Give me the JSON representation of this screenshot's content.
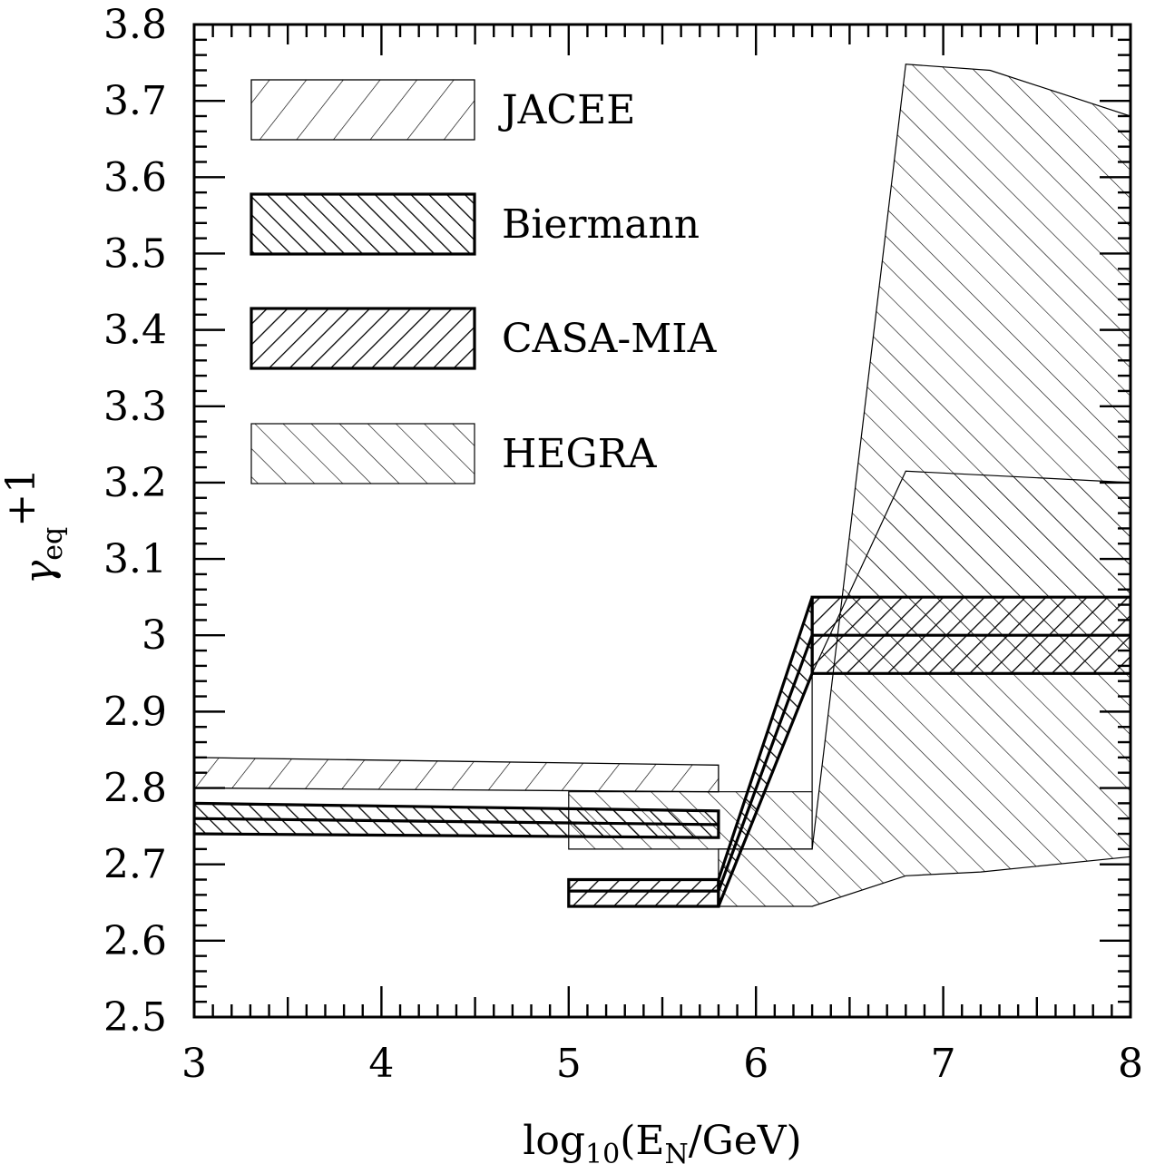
{
  "chart_data": {
    "type": "area",
    "title": "",
    "xlabel": {
      "base": "log",
      "sub": "10",
      "mid": "(E",
      "sub2": "N",
      "end": "/GeV)"
    },
    "ylabel": {
      "base": "γ",
      "sub": "eq",
      "sup": "+1"
    },
    "xlim": [
      3,
      8
    ],
    "ylim": [
      2.5,
      3.8
    ],
    "x_ticks": [
      "3",
      "4",
      "5",
      "6",
      "7",
      "8"
    ],
    "y_ticks": [
      "2.5",
      "2.6",
      "2.7",
      "2.8",
      "2.9",
      "3",
      "3.1",
      "3.2",
      "3.3",
      "3.4",
      "3.5",
      "3.6",
      "3.7",
      "3.8"
    ],
    "legend_position": "top-left",
    "series": [
      {
        "name": "JACEE",
        "style": "thin-backslash-hatch",
        "bands": [
          {
            "upper": [
              [
                3.0,
                2.84
              ],
              [
                5.8,
                2.83
              ]
            ],
            "lower": [
              [
                3.0,
                2.8
              ],
              [
                5.8,
                2.795
              ]
            ]
          }
        ]
      },
      {
        "name": "Biermann",
        "style": "thick-slash-hatch",
        "bands": [
          {
            "upper": [
              [
                3.0,
                2.78
              ],
              [
                5.8,
                2.77
              ]
            ],
            "lower": [
              [
                3.0,
                2.74
              ],
              [
                5.8,
                2.735
              ]
            ],
            "center": [
              [
                3.0,
                2.76
              ],
              [
                5.8,
                2.752
              ]
            ]
          },
          {
            "upper": [
              [
                5.8,
                2.68
              ],
              [
                6.3,
                3.05
              ]
            ],
            "lower": [
              [
                5.8,
                2.645
              ],
              [
                6.3,
                2.95
              ]
            ],
            "center": [
              [
                5.8,
                2.665
              ],
              [
                6.3,
                3.0
              ]
            ]
          }
        ]
      },
      {
        "name": "CASA-MIA",
        "style": "thick-backslash-hatch",
        "bands": [
          {
            "upper": [
              [
                5.0,
                2.68
              ],
              [
                5.8,
                2.68
              ]
            ],
            "lower": [
              [
                5.0,
                2.645
              ],
              [
                5.8,
                2.645
              ]
            ],
            "center": [
              [
                5.0,
                2.665
              ],
              [
                5.8,
                2.665
              ]
            ]
          },
          {
            "upper": [
              [
                6.3,
                3.05
              ],
              [
                8.0,
                3.05
              ]
            ],
            "lower": [
              [
                6.3,
                2.95
              ],
              [
                8.0,
                2.95
              ]
            ],
            "center": [
              [
                6.3,
                3.0
              ],
              [
                8.0,
                3.0
              ]
            ]
          }
        ]
      },
      {
        "name": "HEGRA",
        "style": "thin-slash-hatch",
        "bands": [
          {
            "outline": [
              [
                5.0,
                2.795
              ],
              [
                6.3,
                2.795
              ],
              [
                6.3,
                2.95
              ],
              [
                6.8,
                3.215
              ],
              [
                8.0,
                3.2
              ],
              [
                8.0,
                2.95
              ],
              [
                6.3,
                2.95
              ],
              [
                6.3,
                2.72
              ],
              [
                5.0,
                2.72
              ]
            ]
          },
          {
            "upper": [
              [
                5.8,
                2.72
              ],
              [
                6.3,
                2.72
              ],
              [
                6.8,
                3.748
              ],
              [
                7.25,
                3.74
              ],
              [
                8.0,
                3.68
              ]
            ],
            "lower": [
              [
                5.8,
                2.645
              ],
              [
                6.3,
                2.645
              ],
              [
                6.8,
                2.685
              ],
              [
                7.2,
                2.69
              ],
              [
                8.0,
                2.71
              ]
            ]
          }
        ]
      }
    ],
    "colors": {
      "ink": "#000000",
      "background": "#ffffff"
    }
  }
}
